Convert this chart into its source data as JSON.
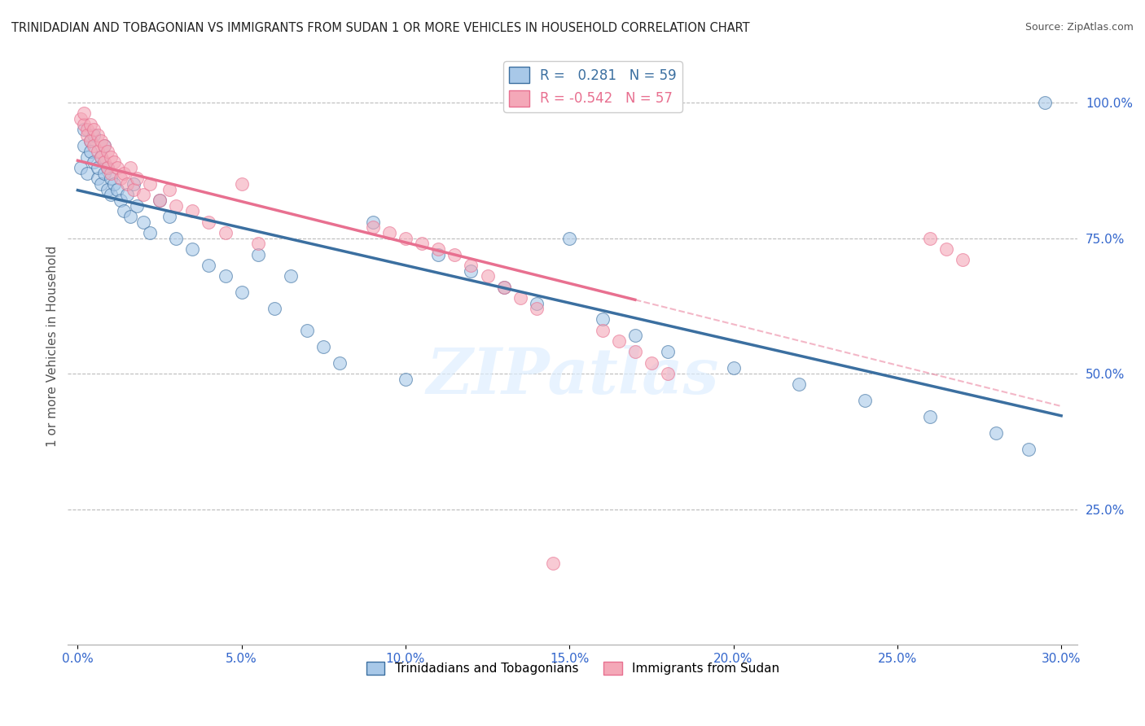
{
  "title": "TRINIDADIAN AND TOBAGONIAN VS IMMIGRANTS FROM SUDAN 1 OR MORE VEHICLES IN HOUSEHOLD CORRELATION CHART",
  "source": "Source: ZipAtlas.com",
  "ylabel": "1 or more Vehicles in Household",
  "r_blue": 0.281,
  "n_blue": 59,
  "r_pink": -0.542,
  "n_pink": 57,
  "legend_label_blue": "Trinidadians and Tobagonians",
  "legend_label_pink": "Immigrants from Sudan",
  "blue_color": "#A8C8E8",
  "pink_color": "#F4A8B8",
  "blue_line_color": "#3B6FA0",
  "pink_line_color": "#E87090",
  "watermark": "ZIPatlas",
  "blue_scatter_x": [
    0.001,
    0.002,
    0.002,
    0.003,
    0.003,
    0.004,
    0.004,
    0.005,
    0.005,
    0.006,
    0.006,
    0.007,
    0.007,
    0.008,
    0.008,
    0.009,
    0.009,
    0.01,
    0.01,
    0.011,
    0.012,
    0.013,
    0.014,
    0.015,
    0.016,
    0.017,
    0.018,
    0.02,
    0.022,
    0.025,
    0.028,
    0.03,
    0.035,
    0.04,
    0.045,
    0.05,
    0.055,
    0.06,
    0.065,
    0.07,
    0.075,
    0.08,
    0.09,
    0.1,
    0.11,
    0.12,
    0.13,
    0.14,
    0.15,
    0.16,
    0.17,
    0.18,
    0.2,
    0.22,
    0.24,
    0.26,
    0.28,
    0.29,
    0.295
  ],
  "blue_scatter_y": [
    0.88,
    0.92,
    0.95,
    0.9,
    0.87,
    0.93,
    0.91,
    0.89,
    0.94,
    0.86,
    0.88,
    0.85,
    0.9,
    0.87,
    0.92,
    0.84,
    0.88,
    0.86,
    0.83,
    0.85,
    0.84,
    0.82,
    0.8,
    0.83,
    0.79,
    0.85,
    0.81,
    0.78,
    0.76,
    0.82,
    0.79,
    0.75,
    0.73,
    0.7,
    0.68,
    0.65,
    0.72,
    0.62,
    0.68,
    0.58,
    0.55,
    0.52,
    0.78,
    0.49,
    0.72,
    0.69,
    0.66,
    0.63,
    0.75,
    0.6,
    0.57,
    0.54,
    0.51,
    0.48,
    0.45,
    0.42,
    0.39,
    0.36,
    1.0
  ],
  "pink_scatter_x": [
    0.001,
    0.002,
    0.002,
    0.003,
    0.003,
    0.004,
    0.004,
    0.005,
    0.005,
    0.006,
    0.006,
    0.007,
    0.007,
    0.008,
    0.008,
    0.009,
    0.009,
    0.01,
    0.01,
    0.011,
    0.012,
    0.013,
    0.014,
    0.015,
    0.016,
    0.017,
    0.018,
    0.02,
    0.022,
    0.025,
    0.028,
    0.03,
    0.035,
    0.04,
    0.045,
    0.05,
    0.055,
    0.09,
    0.095,
    0.1,
    0.105,
    0.11,
    0.115,
    0.12,
    0.125,
    0.13,
    0.135,
    0.14,
    0.16,
    0.165,
    0.17,
    0.175,
    0.18,
    0.26,
    0.265,
    0.27,
    0.145
  ],
  "pink_scatter_y": [
    0.97,
    0.96,
    0.98,
    0.95,
    0.94,
    0.96,
    0.93,
    0.95,
    0.92,
    0.94,
    0.91,
    0.93,
    0.9,
    0.92,
    0.89,
    0.91,
    0.88,
    0.9,
    0.87,
    0.89,
    0.88,
    0.86,
    0.87,
    0.85,
    0.88,
    0.84,
    0.86,
    0.83,
    0.85,
    0.82,
    0.84,
    0.81,
    0.8,
    0.78,
    0.76,
    0.85,
    0.74,
    0.77,
    0.76,
    0.75,
    0.74,
    0.73,
    0.72,
    0.7,
    0.68,
    0.66,
    0.64,
    0.62,
    0.58,
    0.56,
    0.54,
    0.52,
    0.5,
    0.75,
    0.73,
    0.71,
    0.15
  ]
}
